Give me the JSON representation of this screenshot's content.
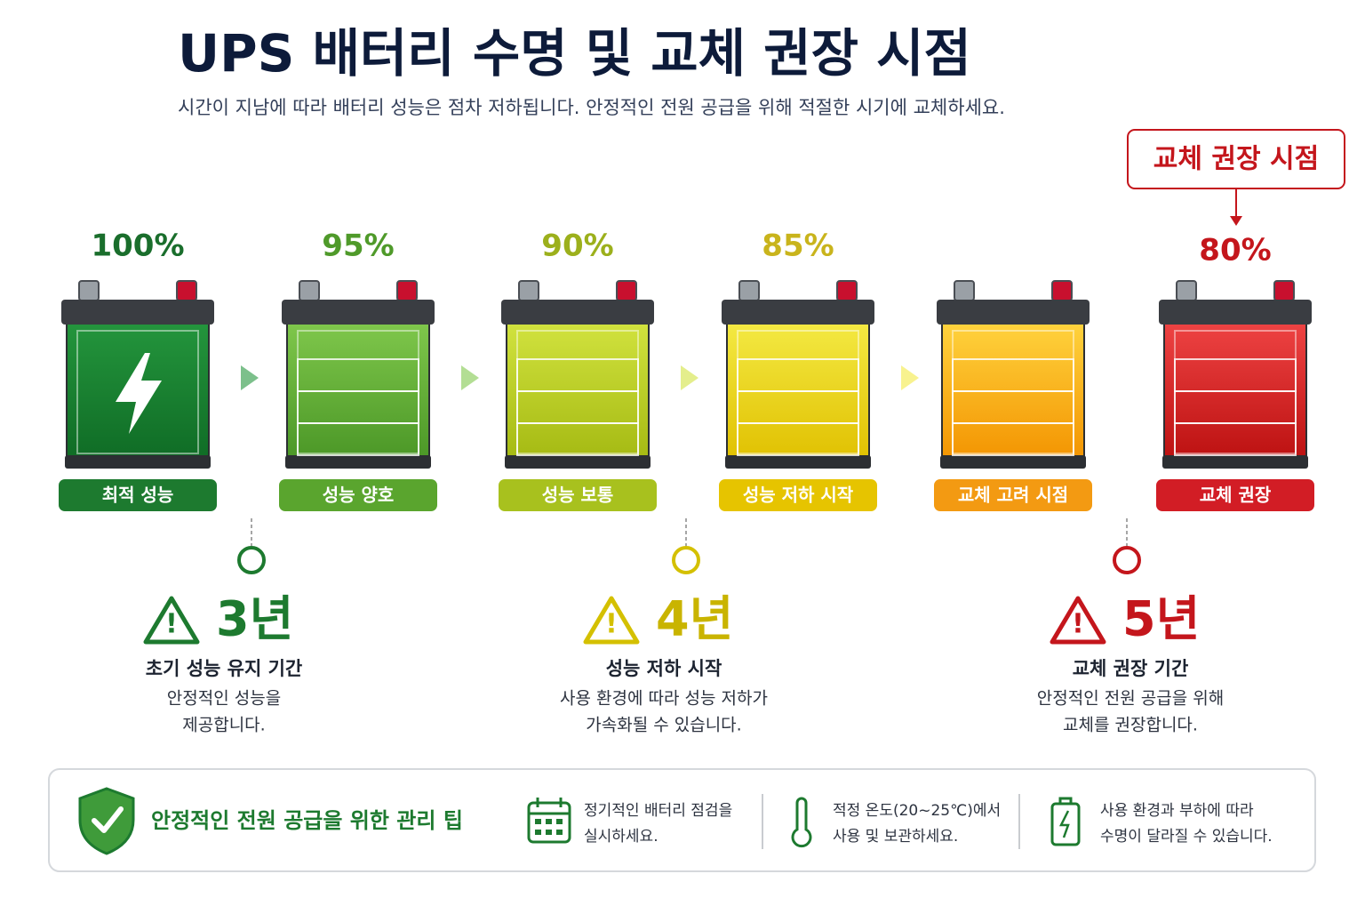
{
  "header": {
    "title": "UPS 배터리 수명 및 교체 권장 시점",
    "subtitle": "시간이 지남에 따라 배터리 성능은 점차 저하됩니다. 안정적인 전원 공급을 위해 적절한 시기에 교체하세요."
  },
  "callout": "교체 권장 시점",
  "batteries": [
    {
      "percent": "100%",
      "label": "최적 성능"
    },
    {
      "percent": "95%",
      "label": "성능 양호"
    },
    {
      "percent": "90%",
      "label": "성능 보통"
    },
    {
      "percent": "85%",
      "label": "성능 저하 시작"
    },
    {
      "percent": "",
      "label": "교체 고려 시점"
    },
    {
      "percent": "80%",
      "label": "교체 권장"
    }
  ],
  "milestones": [
    {
      "years": "3년",
      "heading": "초기 성능 유지 기간",
      "lines": [
        "안정적인 성능을",
        "제공합니다."
      ]
    },
    {
      "years": "4년",
      "heading": "성능 저하 시작",
      "lines": [
        "사용 환경에 따라 성능 저하가",
        "가속화될 수 있습니다."
      ]
    },
    {
      "years": "5년",
      "heading": "교체 권장 기간",
      "lines": [
        "안정적인 전원 공급을 위해",
        "교체를 권장합니다."
      ]
    }
  ],
  "tips": {
    "heading": "안정적인 전원 공급을 위한 관리 팁",
    "items": [
      {
        "lines": [
          "정기적인 배터리 점검을",
          "실시하세요."
        ]
      },
      {
        "lines": [
          "적정 온도(20~25℃)에서",
          "사용 및 보관하세요."
        ]
      },
      {
        "lines": [
          "사용 환경과 부하에 따라",
          "수명이 달라질 수 있습니다."
        ]
      }
    ]
  }
}
